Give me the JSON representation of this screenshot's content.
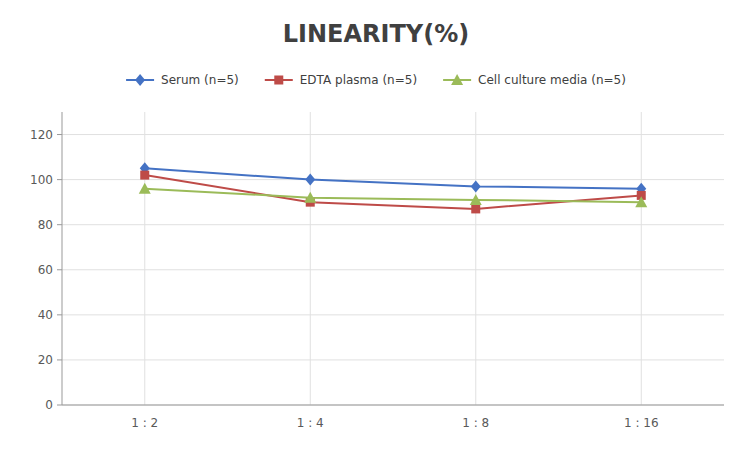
{
  "chart_data": {
    "type": "line",
    "title": "LINEARITY(%)",
    "categories": [
      "1 : 2",
      "1 : 4",
      "1 : 8",
      "1 : 16"
    ],
    "series": [
      {
        "name": "Serum (n=5)",
        "color": "#4472C4",
        "marker": "diamond",
        "values": [
          105,
          100,
          97,
          96
        ]
      },
      {
        "name": "EDTA plasma (n=5)",
        "color": "#BE4B48",
        "marker": "square",
        "values": [
          102,
          90,
          87,
          93
        ]
      },
      {
        "name": "Cell culture media (n=5)",
        "color": "#9BBB59",
        "marker": "triangle",
        "values": [
          96,
          92,
          91,
          90
        ]
      }
    ],
    "ylim": [
      0,
      130
    ],
    "yticks": [
      0,
      20,
      40,
      60,
      80,
      100,
      120
    ],
    "grid": true,
    "legend": "top"
  }
}
